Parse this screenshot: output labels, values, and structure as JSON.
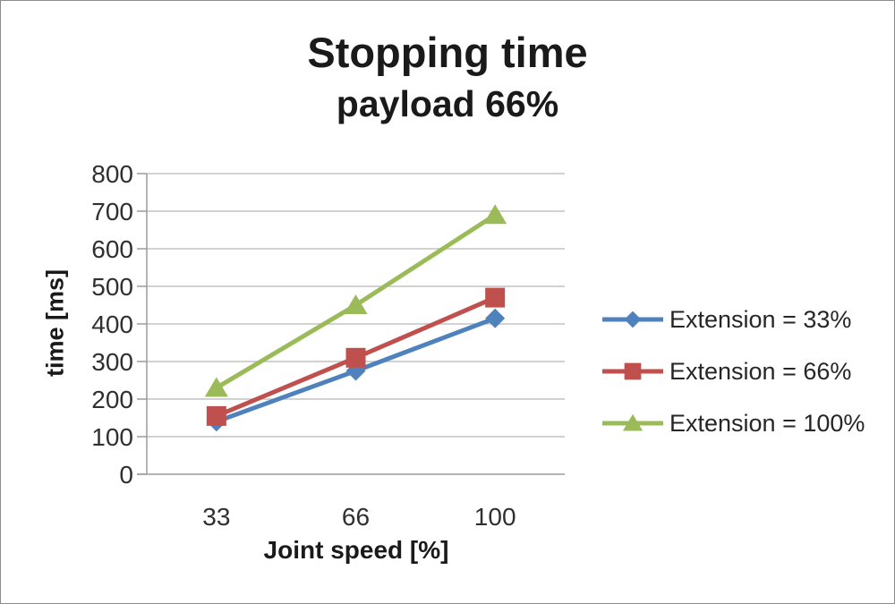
{
  "window": {
    "background": "#ffffff",
    "border_color": "#8c8c8c"
  },
  "chart_data": {
    "type": "line",
    "title": "Stopping time",
    "subtitle": "payload 66%",
    "xlabel": "Joint speed [%]",
    "ylabel": "time [ms]",
    "categories": [
      "33",
      "66",
      "100"
    ],
    "y_ticks": [
      0,
      100,
      200,
      300,
      400,
      500,
      600,
      700,
      800
    ],
    "ylim": [
      0,
      800
    ],
    "grid": true,
    "legend_position": "right",
    "colors": {
      "gridline": "#c3c3c3",
      "axis": "#9b9b9b",
      "tick_label": "#303030",
      "title_text": "#1a1a1a"
    },
    "series": [
      {
        "name": "Extension = 33%",
        "color": "#4f81bd",
        "marker": "diamond",
        "values": [
          140,
          275,
          415
        ]
      },
      {
        "name": "Extension = 66%",
        "color": "#c0504d",
        "marker": "square",
        "values": [
          155,
          310,
          470
        ]
      },
      {
        "name": "Extension = 100%",
        "color": "#9bbb59",
        "marker": "triangle",
        "values": [
          230,
          450,
          690
        ]
      }
    ]
  }
}
